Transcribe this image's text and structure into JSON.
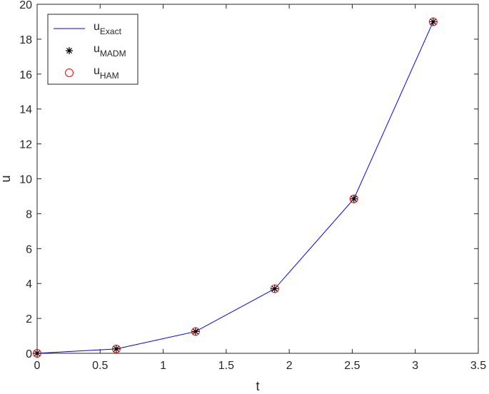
{
  "chart_data": {
    "type": "line",
    "xlabel": "t",
    "ylabel": "u",
    "x": [
      0,
      0.628,
      1.257,
      1.885,
      2.513,
      3.142
    ],
    "series": [
      {
        "name": "u",
        "subscript": "Exact",
        "color": "#0000ff",
        "marker": "none",
        "values": [
          0,
          0.25,
          1.25,
          3.7,
          8.85,
          19.0
        ]
      },
      {
        "name": "u",
        "subscript": "MADM",
        "color": "#000000",
        "marker": "asterisk",
        "values": [
          0,
          0.25,
          1.25,
          3.7,
          8.85,
          19.0
        ]
      },
      {
        "name": "u",
        "subscript": "HAM",
        "color": "#ff0000",
        "marker": "circle",
        "values": [
          0,
          0.25,
          1.25,
          3.7,
          8.85,
          19.0
        ]
      }
    ],
    "xlim": [
      0,
      3.5
    ],
    "xticks": [
      0,
      0.5,
      1,
      1.5,
      2,
      2.5,
      3,
      3.5
    ],
    "ylim": [
      0,
      20
    ],
    "yticks": [
      0,
      2,
      4,
      6,
      8,
      10,
      12,
      14,
      16,
      18,
      20
    ],
    "grid": false,
    "legend": "upper left"
  }
}
